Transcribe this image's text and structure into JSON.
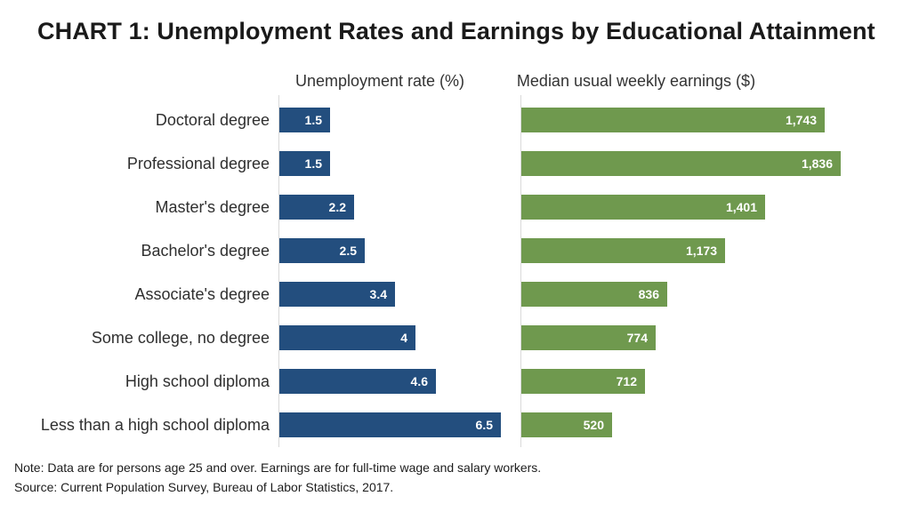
{
  "title": "CHART 1: Unemployment Rates and Earnings by Educational Attainment",
  "note": "Note: Data are for persons age 25 and over. Earnings are for full-time wage and salary workers.",
  "source": "Source: Current Population Survey, Bureau of Labor Statistics, 2017.",
  "colors": {
    "unemployment_bar": "#234e7e",
    "earnings_bar": "#6f994e",
    "axis_line": "#d9d9d9",
    "title_text": "#1a1a1a",
    "label_text": "#2f2f2f",
    "bar_value_text": "#ffffff"
  },
  "chart_data": {
    "type": "bar",
    "orientation": "horizontal",
    "title": "CHART 1: Unemployment Rates and Earnings by Educational Attainment",
    "categories": [
      "Doctoral degree",
      "Professional degree",
      "Master's degree",
      "Bachelor's degree",
      "Associate's degree",
      "Some college, no degree",
      "High school diploma",
      "Less than a high school diploma"
    ],
    "series": [
      {
        "name": "Unemployment rate (%)",
        "unit": "%",
        "values": [
          1.5,
          1.5,
          2.2,
          2.5,
          3.4,
          4,
          4.6,
          6.5
        ],
        "labels": [
          "1.5",
          "1.5",
          "2.2",
          "2.5",
          "3.4",
          "4",
          "4.6",
          "6.5"
        ],
        "color": "#234e7e",
        "xlim": [
          0,
          6.8
        ]
      },
      {
        "name": "Median usual weekly earnings ($)",
        "unit": "$",
        "values": [
          1743,
          1836,
          1401,
          1173,
          836,
          774,
          712,
          520
        ],
        "labels": [
          "1,743",
          "1,836",
          "1,401",
          "1,173",
          "836",
          "774",
          "712",
          "520"
        ],
        "color": "#6f994e",
        "xlim": [
          0,
          1870
        ]
      }
    ],
    "grid": false,
    "legend": "none",
    "value_labels": "inside-end"
  }
}
